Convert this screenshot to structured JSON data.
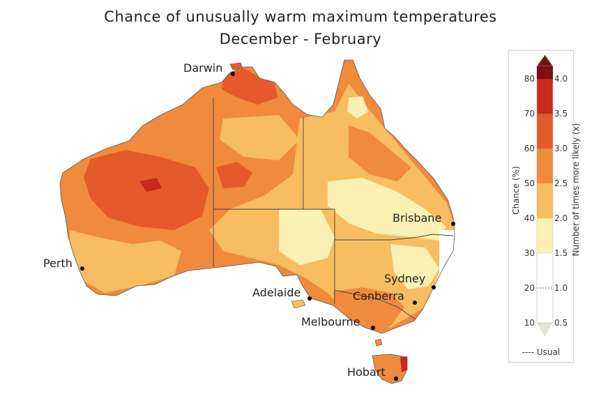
{
  "title_line1": "Chance of unusually warm maximum temperatures",
  "title_line2": "December - February",
  "colors": {
    "band_30_40": "#fbf0b3",
    "band_40_50": "#f7bd60",
    "band_50_60": "#f08a3c",
    "band_60_70": "#e45a2a",
    "band_70_80": "#c8281e",
    "band_80": "#7a0f14",
    "usual": "#ffffff",
    "below": "#dfe5d8"
  },
  "cities": [
    {
      "name": "Darwin"
    },
    {
      "name": "Brisbane"
    },
    {
      "name": "Perth"
    },
    {
      "name": "Sydney"
    },
    {
      "name": "Adelaide"
    },
    {
      "name": "Canberra"
    },
    {
      "name": "Melbourne"
    },
    {
      "name": "Hobart"
    }
  ],
  "legend": {
    "left_axis_label": "Chance (%)",
    "right_axis_label": "Number of times more likely (x)",
    "chance_ticks": [
      "80",
      "70",
      "60",
      "50",
      "40",
      "30",
      "20",
      "10"
    ],
    "ratio_ticks": [
      "4.0",
      "3.5",
      "3.0",
      "2.5",
      "2.0",
      "1.5",
      "1.0",
      "0.5"
    ],
    "usual_note": "---- Usual"
  }
}
